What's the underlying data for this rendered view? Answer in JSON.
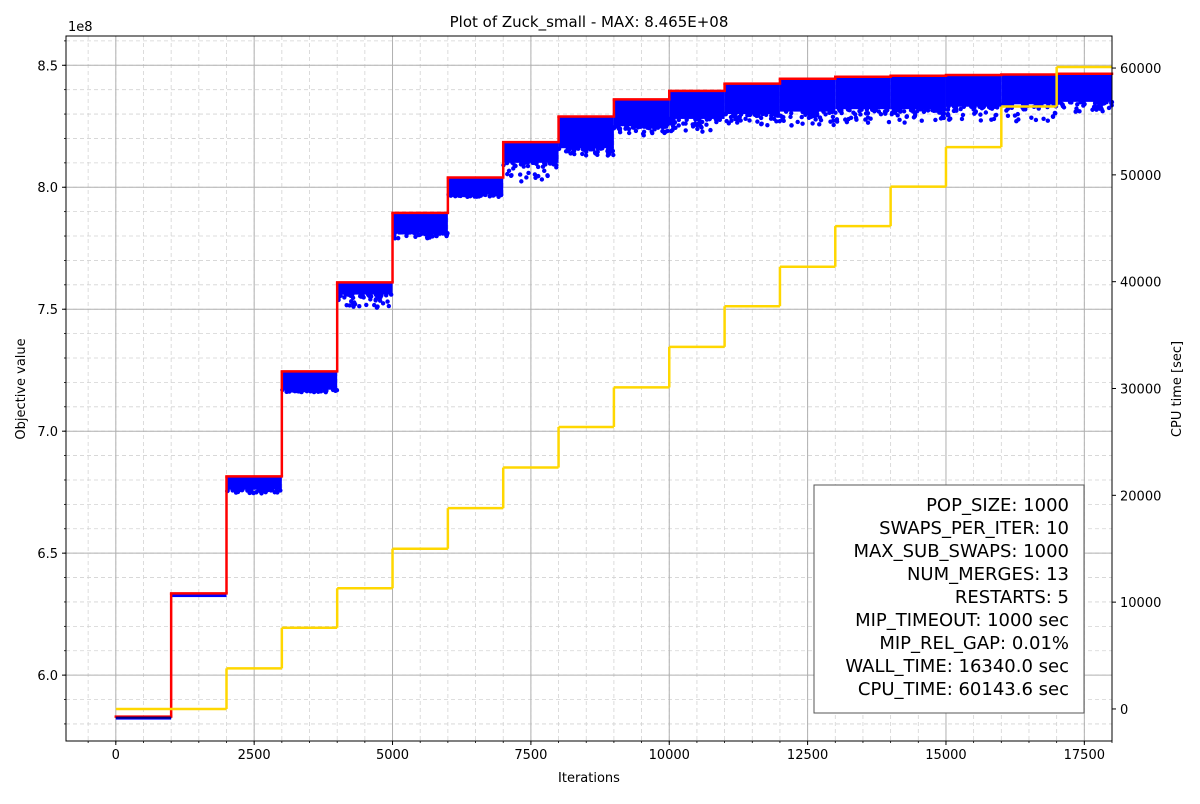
{
  "chart_data": {
    "type": "line",
    "title": "Plot of Zuck_small - MAX: 8.465E+08",
    "xlabel": "Iterations",
    "ylabel": "Objective value",
    "y2label": "CPU time [sec]",
    "y_offset_label": "1e8",
    "xlim": [
      -900,
      18000
    ],
    "ylim": [
      573000000.0,
      862000000.0
    ],
    "y2lim": [
      -3000,
      63000
    ],
    "x_ticks": [
      0,
      2500,
      5000,
      7500,
      10000,
      12500,
      15000,
      17500
    ],
    "x_tick_labels": [
      "0",
      "2500",
      "5000",
      "7500",
      "10000",
      "12500",
      "15000",
      "17500"
    ],
    "y_ticks": [
      600000000.0,
      650000000.0,
      700000000.0,
      750000000.0,
      800000000.0,
      850000000.0
    ],
    "y_tick_labels": [
      "6.0",
      "6.5",
      "7.0",
      "7.5",
      "8.0",
      "8.5"
    ],
    "y2_ticks": [
      0,
      10000,
      20000,
      30000,
      40000,
      50000,
      60000
    ],
    "y2_tick_labels": [
      "0",
      "10000",
      "20000",
      "30000",
      "40000",
      "50000",
      "60000"
    ],
    "grid": true,
    "restart_interval": 1000,
    "series": [
      {
        "kind": "best-objective-step",
        "color": "#ff0000",
        "segments": [
          {
            "x0": 0,
            "x1": 1000,
            "y": 583000000.0
          },
          {
            "x0": 1000,
            "x1": 2000,
            "y": 633500000.0
          },
          {
            "x0": 2000,
            "x1": 3000,
            "y": 681500000.0
          },
          {
            "x0": 3000,
            "x1": 4000,
            "y": 724500000.0
          },
          {
            "x0": 4000,
            "x1": 5000,
            "y": 761000000.0
          },
          {
            "x0": 5000,
            "x1": 6000,
            "y": 789500000.0
          },
          {
            "x0": 6000,
            "x1": 7000,
            "y": 804000000.0
          },
          {
            "x0": 7000,
            "x1": 8000,
            "y": 818500000.0
          },
          {
            "x0": 8000,
            "x1": 9000,
            "y": 829000000.0
          },
          {
            "x0": 9000,
            "x1": 10000,
            "y": 836000000.0
          },
          {
            "x0": 10000,
            "x1": 11000,
            "y": 839500000.0
          },
          {
            "x0": 11000,
            "x1": 12000,
            "y": 842500000.0
          },
          {
            "x0": 12000,
            "x1": 13000,
            "y": 844500000.0
          },
          {
            "x0": 13000,
            "x1": 14000,
            "y": 845300000.0
          },
          {
            "x0": 14000,
            "x1": 15000,
            "y": 845700000.0
          },
          {
            "x0": 15000,
            "x1": 16000,
            "y": 846000000.0
          },
          {
            "x0": 16000,
            "x1": 17000,
            "y": 846200000.0
          },
          {
            "x0": 17000,
            "x1": 18000,
            "y": 846500000.0
          }
        ]
      },
      {
        "kind": "population-scatter",
        "color": "#0000ff",
        "bands": [
          {
            "x0": 0,
            "x1": 1000,
            "top": 583000000.0,
            "bottom": 583000000.0,
            "min": 583000000.0
          },
          {
            "x0": 1000,
            "x1": 2000,
            "top": 633500000.0,
            "bottom": 632000000.0,
            "min": 632000000.0
          },
          {
            "x0": 2000,
            "x1": 3000,
            "top": 681500000.0,
            "bottom": 676000000.0,
            "min": 674500000.0
          },
          {
            "x0": 3000,
            "x1": 4000,
            "top": 724500000.0,
            "bottom": 717000000.0,
            "min": 716000000.0
          },
          {
            "x0": 4000,
            "x1": 5000,
            "top": 761000000.0,
            "bottom": 756000000.0,
            "min": 750500000.0
          },
          {
            "x0": 5000,
            "x1": 6000,
            "top": 789500000.0,
            "bottom": 781500000.0,
            "min": 779000000.0
          },
          {
            "x0": 6000,
            "x1": 7000,
            "top": 804000000.0,
            "bottom": 797000000.0,
            "min": 796000000.0
          },
          {
            "x0": 7000,
            "x1": 8000,
            "top": 818500000.0,
            "bottom": 810000000.0,
            "min": 802000000.0
          },
          {
            "x0": 8000,
            "x1": 9000,
            "top": 829000000.0,
            "bottom": 816000000.0,
            "min": 813000000.0
          },
          {
            "x0": 9000,
            "x1": 10000,
            "top": 836000000.0,
            "bottom": 825000000.0,
            "min": 821000000.0
          },
          {
            "x0": 10000,
            "x1": 11000,
            "top": 839500000.0,
            "bottom": 828000000.0,
            "min": 822000000.0
          },
          {
            "x0": 11000,
            "x1": 12000,
            "top": 842500000.0,
            "bottom": 830000000.0,
            "min": 825000000.0
          },
          {
            "x0": 12000,
            "x1": 13000,
            "top": 844500000.0,
            "bottom": 831000000.0,
            "min": 825000000.0
          },
          {
            "x0": 13000,
            "x1": 14000,
            "top": 845300000.0,
            "bottom": 832000000.0,
            "min": 826000000.0
          },
          {
            "x0": 14000,
            "x1": 15000,
            "top": 845700000.0,
            "bottom": 832000000.0,
            "min": 826000000.0
          },
          {
            "x0": 15000,
            "x1": 16000,
            "top": 846000000.0,
            "bottom": 833000000.0,
            "min": 827000000.0
          },
          {
            "x0": 16000,
            "x1": 17000,
            "top": 846200000.0,
            "bottom": 834000000.0,
            "min": 827000000.0
          },
          {
            "x0": 17000,
            "x1": 18000,
            "top": 846500000.0,
            "bottom": 835000000.0,
            "min": 830000000.0
          }
        ]
      },
      {
        "kind": "cpu-time-step",
        "axis": "right",
        "color": "#ffd700",
        "segments": [
          {
            "x0": 0,
            "x1": 2000,
            "y": 0
          },
          {
            "x0": 2000,
            "x1": 3000,
            "y": 3800
          },
          {
            "x0": 3000,
            "x1": 4000,
            "y": 7600
          },
          {
            "x0": 4000,
            "x1": 5000,
            "y": 11300
          },
          {
            "x0": 5000,
            "x1": 6000,
            "y": 15000
          },
          {
            "x0": 6000,
            "x1": 7000,
            "y": 18800
          },
          {
            "x0": 7000,
            "x1": 8000,
            "y": 22600
          },
          {
            "x0": 8000,
            "x1": 9000,
            "y": 26400
          },
          {
            "x0": 9000,
            "x1": 10000,
            "y": 30100
          },
          {
            "x0": 10000,
            "x1": 11000,
            "y": 33900
          },
          {
            "x0": 11000,
            "x1": 12000,
            "y": 37700
          },
          {
            "x0": 12000,
            "x1": 13000,
            "y": 41400
          },
          {
            "x0": 13000,
            "x1": 14000,
            "y": 45200
          },
          {
            "x0": 14000,
            "x1": 15000,
            "y": 48900
          },
          {
            "x0": 15000,
            "x1": 16000,
            "y": 52600
          },
          {
            "x0": 16000,
            "x1": 17000,
            "y": 56400
          },
          {
            "x0": 17000,
            "x1": 18000,
            "y": 60100
          }
        ]
      }
    ],
    "annotation": {
      "placement": "bottom-right",
      "lines": [
        "POP_SIZE: 1000",
        "SWAPS_PER_ITER: 10",
        "MAX_SUB_SWAPS: 1000",
        "NUM_MERGES: 13",
        "RESTARTS: 5",
        "MIP_TIMEOUT: 1000 sec",
        "MIP_REL_GAP: 0.01%",
        "WALL_TIME: 16340.0 sec",
        "CPU_TIME: 60143.6 sec"
      ]
    }
  }
}
